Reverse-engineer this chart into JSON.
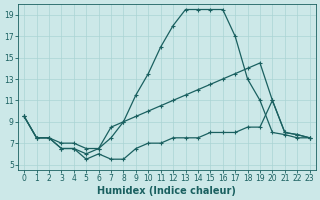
{
  "xlabel": "Humidex (Indice chaleur)",
  "bg_color": "#cce8e8",
  "line_color": "#1a6060",
  "grid_color": "#aad4d4",
  "xlim": [
    -0.5,
    23.5
  ],
  "ylim": [
    4.5,
    20.0
  ],
  "xticks": [
    0,
    1,
    2,
    3,
    4,
    5,
    6,
    7,
    8,
    9,
    10,
    11,
    12,
    13,
    14,
    15,
    16,
    17,
    18,
    19,
    20,
    21,
    22,
    23
  ],
  "yticks": [
    5,
    7,
    9,
    11,
    13,
    15,
    17,
    19
  ],
  "line1_x": [
    0,
    1,
    2,
    3,
    4,
    5,
    6,
    7,
    8,
    9,
    10,
    11,
    12,
    13,
    14,
    15,
    16,
    17,
    18,
    19,
    20,
    21,
    22,
    23
  ],
  "line1_y": [
    9.5,
    7.5,
    7.5,
    6.5,
    6.5,
    6.0,
    6.5,
    7.5,
    9.0,
    11.5,
    13.5,
    16.0,
    18.0,
    19.5,
    19.5,
    19.5,
    19.5,
    17.0,
    13.0,
    11.0,
    8.0,
    7.8,
    7.5,
    7.5
  ],
  "line2_x": [
    0,
    1,
    2,
    3,
    4,
    5,
    6,
    7,
    8,
    9,
    10,
    11,
    12,
    13,
    14,
    15,
    16,
    17,
    18,
    19,
    20,
    21,
    22,
    23
  ],
  "line2_y": [
    9.5,
    7.5,
    7.5,
    7.0,
    7.0,
    6.5,
    6.5,
    8.5,
    9.0,
    9.5,
    10.0,
    10.5,
    11.0,
    11.5,
    12.0,
    12.5,
    13.0,
    13.5,
    14.0,
    14.5,
    11.0,
    8.0,
    7.8,
    7.5
  ],
  "line3_x": [
    0,
    1,
    2,
    3,
    4,
    5,
    6,
    7,
    8,
    9,
    10,
    11,
    12,
    13,
    14,
    15,
    16,
    17,
    18,
    19,
    20,
    21,
    22,
    23
  ],
  "line3_y": [
    9.5,
    7.5,
    7.5,
    6.5,
    6.5,
    5.5,
    6.0,
    5.5,
    5.5,
    6.5,
    7.0,
    7.0,
    7.5,
    7.5,
    7.5,
    8.0,
    8.0,
    8.0,
    8.5,
    8.5,
    11.0,
    8.0,
    7.8,
    7.5
  ],
  "marker": "+",
  "markersize": 3.5,
  "linewidth": 0.9,
  "xlabel_fontsize": 7,
  "tick_fontsize": 5.5,
  "tick_color": "#1a6060"
}
